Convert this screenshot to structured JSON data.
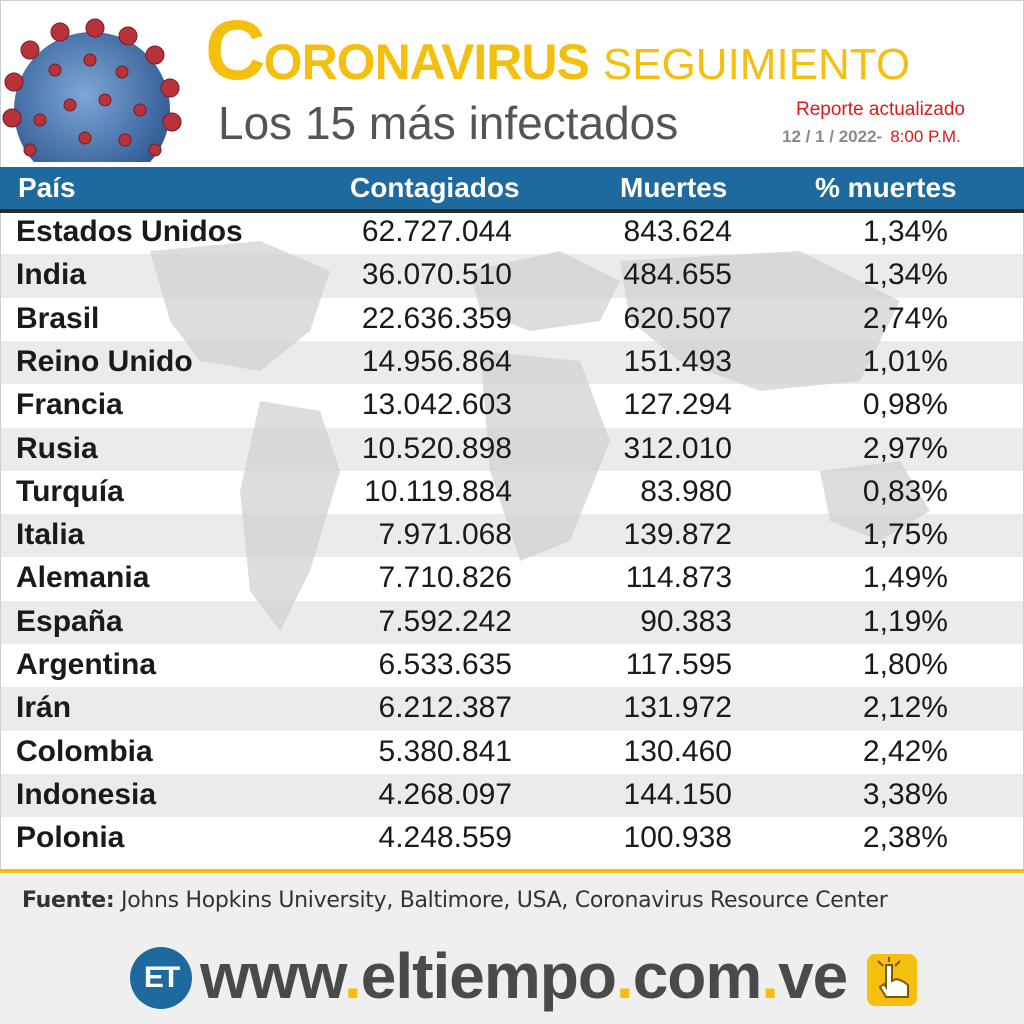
{
  "header": {
    "title_first_letter": "C",
    "title_rest": "ORONAVIRUS",
    "title_second": "SEGUIMIENTO",
    "subtitle": "Los 15 más infectados",
    "report_label": "Reporte actualizado",
    "report_date": "12 / 1 / 2022-",
    "report_time": "8:00 P.M."
  },
  "table": {
    "headers": {
      "country": "País",
      "cases": "Contagiados",
      "deaths": "Muertes",
      "pct": "% muertes"
    },
    "rows": [
      {
        "country": "Estados Unidos",
        "cases": "62.727.044",
        "deaths": "843.624",
        "pct": "1,34%"
      },
      {
        "country": "India",
        "cases": "36.070.510",
        "deaths": "484.655",
        "pct": "1,34%"
      },
      {
        "country": "Brasil",
        "cases": "22.636.359",
        "deaths": "620.507",
        "pct": "2,74%"
      },
      {
        "country": "Reino Unido",
        "cases": "14.956.864",
        "deaths": "151.493",
        "pct": "1,01%"
      },
      {
        "country": "Francia",
        "cases": "13.042.603",
        "deaths": "127.294",
        "pct": "0,98%"
      },
      {
        "country": "Rusia",
        "cases": "10.520.898",
        "deaths": "312.010",
        "pct": "2,97%"
      },
      {
        "country": "Turquía",
        "cases": "10.119.884",
        "deaths": "83.980",
        "pct": "0,83%"
      },
      {
        "country": "Italia",
        "cases": "7.971.068",
        "deaths": "139.872",
        "pct": "1,75%"
      },
      {
        "country": "Alemania",
        "cases": "7.710.826",
        "deaths": "114.873",
        "pct": "1,49%"
      },
      {
        "country": "España",
        "cases": "7.592.242",
        "deaths": "90.383",
        "pct": "1,19%"
      },
      {
        "country": "Argentina",
        "cases": "6.533.635",
        "deaths": "117.595",
        "pct": "1,80%"
      },
      {
        "country": "Irán",
        "cases": "6.212.387",
        "deaths": "131.972",
        "pct": "2,12%"
      },
      {
        "country": "Colombia",
        "cases": "5.380.841",
        "deaths": "130.460",
        "pct": "2,42%"
      },
      {
        "country": "Indonesia",
        "cases": "4.268.097",
        "deaths": "144.150",
        "pct": "3,38%"
      },
      {
        "country": "Polonia",
        "cases": "4.248.559",
        "deaths": "100.938",
        "pct": "2,38%"
      }
    ]
  },
  "source": {
    "label": "Fuente:",
    "text": "Johns Hopkins University, Baltimore, USA, Coronavirus Resource Center"
  },
  "footer": {
    "logo_text": "ET",
    "url_parts": [
      "www",
      ".",
      "eltiempo",
      ".",
      "com",
      ".",
      "ve"
    ]
  },
  "colors": {
    "accent_yellow": "#f5bf0f",
    "header_blue": "#1e6a9e",
    "report_red": "#e01818"
  }
}
